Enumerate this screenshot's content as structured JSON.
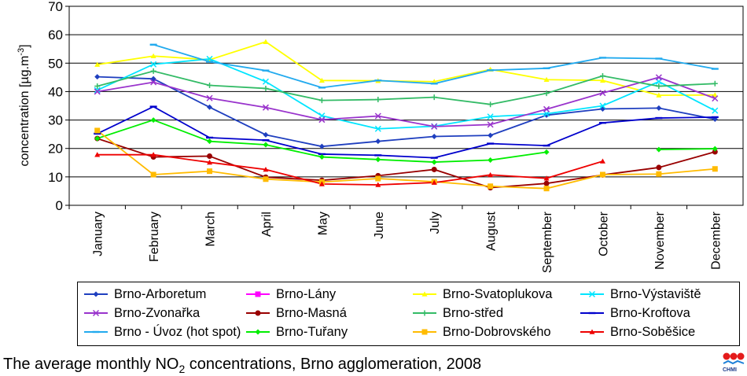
{
  "chart_data": {
    "type": "line",
    "ylabel": "concentration [µg.m-3]",
    "ylim": [
      0,
      70
    ],
    "yticks": [
      0,
      10,
      20,
      30,
      40,
      50,
      60,
      70
    ],
    "grid": true,
    "legend_position": "bottom",
    "categories": [
      "January",
      "February",
      "March",
      "April",
      "May",
      "June",
      "July",
      "August",
      "September",
      "October",
      "November",
      "December"
    ],
    "series": [
      {
        "name": "Brno-Arboretum",
        "color": "#1f3fbf",
        "marker": "diamond",
        "values": [
          45.2,
          44.5,
          34.5,
          24.8,
          20.7,
          22.5,
          24.2,
          24.6,
          31.7,
          33.9,
          34.2,
          30.3
        ]
      },
      {
        "name": "Brno-Lány",
        "color": "#ff00ff",
        "marker": "square",
        "values": [
          null,
          null,
          null,
          null,
          null,
          null,
          null,
          null,
          null,
          null,
          null,
          null
        ]
      },
      {
        "name": "Brno-Svatoplukova",
        "color": "#ffff00",
        "marker": "triangle",
        "values": [
          49.5,
          52.5,
          51.2,
          57.5,
          43.9,
          43.8,
          43.5,
          47.8,
          44.2,
          43.9,
          38.7,
          38.8
        ]
      },
      {
        "name": "Brno-Výstaviště",
        "color": "#00e5ff",
        "marker": "x",
        "values": [
          40.5,
          49.6,
          51.5,
          43.5,
          31.5,
          26.9,
          27.8,
          31.2,
          32.2,
          35.0,
          43.5,
          33.3
        ]
      },
      {
        "name": "Brno-Zvonařka",
        "color": "#9933cc",
        "marker": "x",
        "values": [
          40.0,
          43.3,
          37.7,
          34.4,
          30.1,
          31.4,
          27.7,
          28.4,
          33.8,
          39.5,
          45.0,
          37.6
        ]
      },
      {
        "name": "Brno-Masná",
        "color": "#990000",
        "marker": "circle",
        "values": [
          23.5,
          17.0,
          17.3,
          9.9,
          8.8,
          10.4,
          12.6,
          6.2,
          7.7,
          10.7,
          13.3,
          18.8
        ]
      },
      {
        "name": "Brno-střed",
        "color": "#33bb66",
        "marker": "plus",
        "values": [
          41.9,
          47.2,
          42.2,
          41.1,
          36.9,
          37.2,
          38.0,
          35.5,
          39.4,
          45.5,
          41.9,
          42.8
        ]
      },
      {
        "name": "Brno-Kroftova",
        "color": "#0000cc",
        "marker": "dash",
        "values": [
          25.2,
          34.7,
          23.8,
          22.9,
          18.0,
          17.6,
          16.7,
          21.7,
          21.0,
          29.0,
          30.7,
          31.0
        ]
      },
      {
        "name": "Brno - Úvoz (hot spot)",
        "color": "#22aaee",
        "marker": "dash",
        "values": [
          null,
          56.5,
          50.5,
          47.4,
          41.4,
          43.9,
          42.8,
          47.5,
          48.2,
          51.9,
          51.6,
          48.0
        ]
      },
      {
        "name": "Brno-Tuřany",
        "color": "#00ee00",
        "marker": "diamond",
        "values": [
          23.5,
          30.0,
          22.5,
          21.3,
          17.0,
          16.1,
          15.2,
          15.9,
          18.7,
          null,
          19.6,
          19.9
        ]
      },
      {
        "name": "Brno-Dobrovského",
        "color": "#ffbb00",
        "marker": "square",
        "values": [
          26.3,
          10.8,
          12.0,
          9.2,
          8.2,
          9.4,
          8.3,
          6.7,
          5.9,
          10.8,
          11.0,
          12.8
        ]
      },
      {
        "name": "Brno-Soběšice",
        "color": "#ee0000",
        "marker": "triangle",
        "values": [
          17.8,
          17.8,
          15.1,
          12.6,
          7.5,
          7.2,
          8.0,
          10.7,
          9.5,
          15.5,
          null,
          null
        ]
      }
    ]
  },
  "legend": [
    "Brno-Arboretum",
    "Brno-Lány",
    "Brno-Svatoplukova",
    "Brno-Výstaviště",
    "Brno-Zvonařka",
    "Brno-Masná",
    "Brno-střed",
    "Brno-Kroftova",
    "Brno - Úvoz (hot spot)",
    "Brno-Tuřany",
    "Brno-Dobrovského",
    "Brno-Soběšice"
  ],
  "ylabel_main": "concentration [µg.m",
  "ylabel_sup": "-3",
  "ylabel_end": "]",
  "caption": {
    "pre": "The average monthly NO",
    "sub": "2",
    "post": " concentrations, Brno agglomeration, 2008"
  },
  "logo_text": "CHMI"
}
